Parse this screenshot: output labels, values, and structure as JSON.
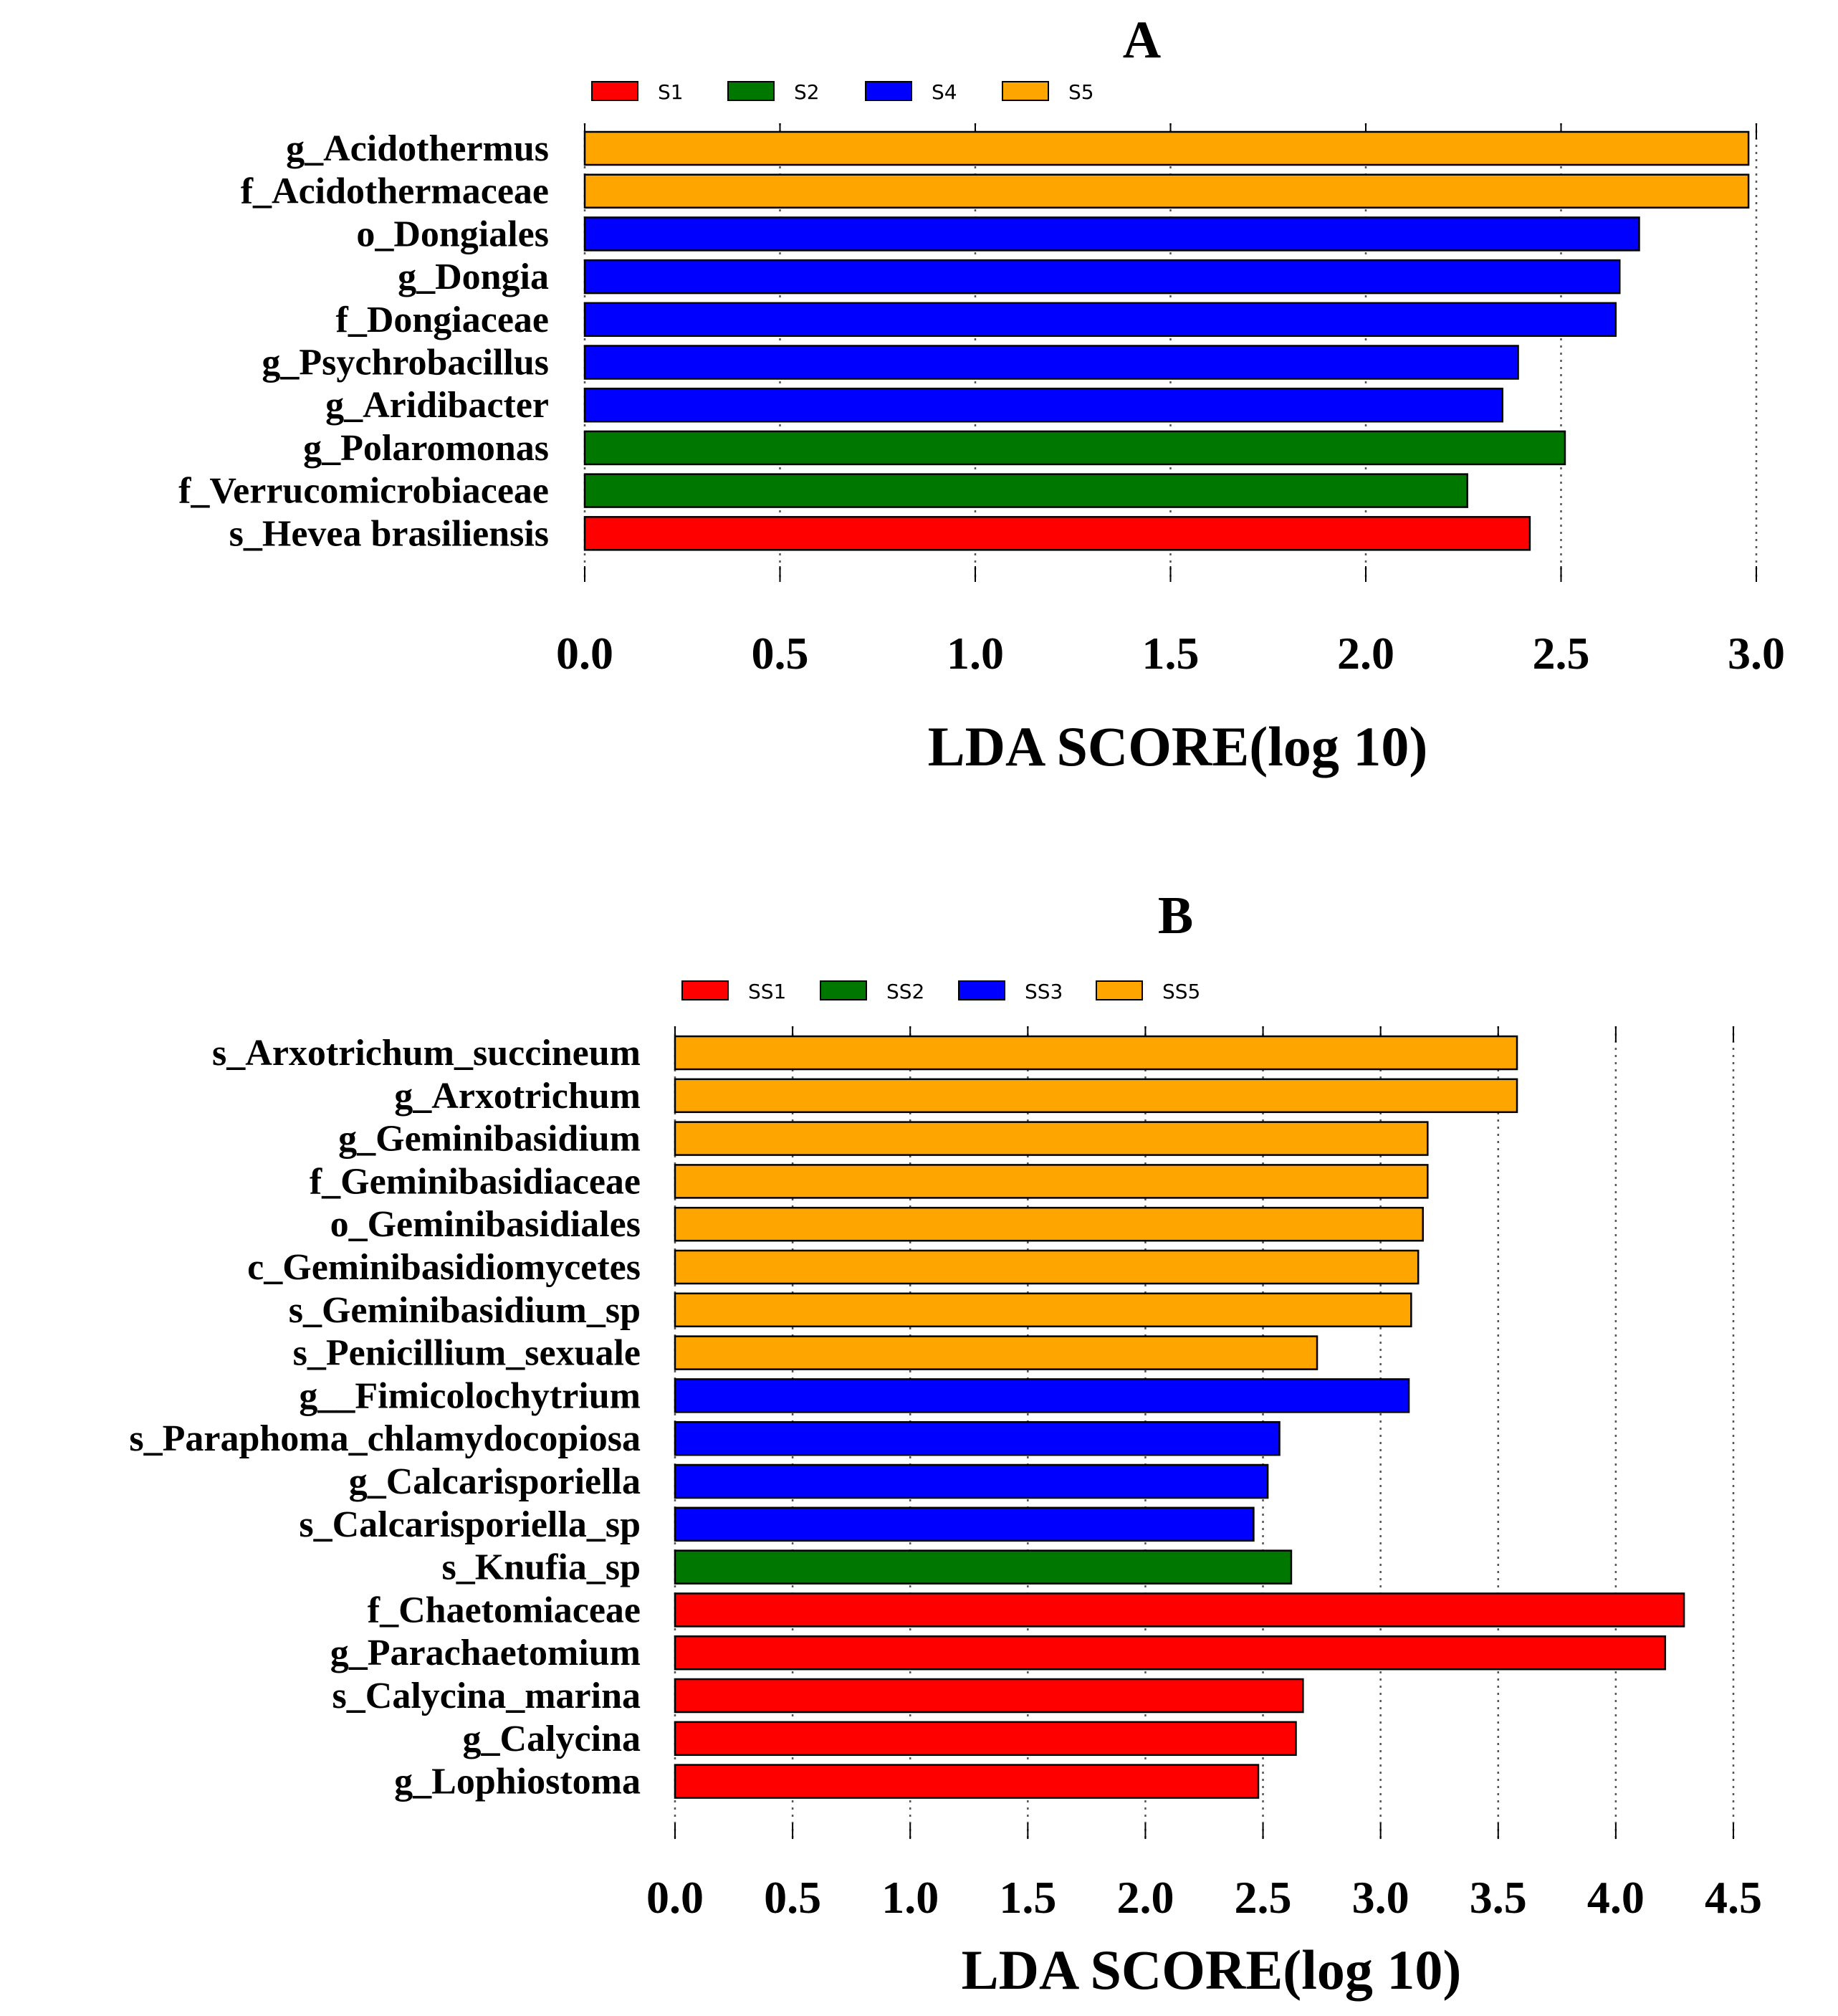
{
  "colors": {
    "red": "#ff0000",
    "green": "#007800",
    "blue": "#0000ff",
    "orange": "#ffa500"
  },
  "chart_data": [
    {
      "type": "bar",
      "orientation": "horizontal",
      "title": "A",
      "xlabel": "LDA SCORE(log 10)",
      "xlim": [
        0,
        3.0
      ],
      "xticks": [
        "0.0",
        "0.5",
        "1.0",
        "1.5",
        "2.0",
        "2.5",
        "3.0"
      ],
      "legend": [
        {
          "label": "S1",
          "color": "#ff0000"
        },
        {
          "label": "S2",
          "color": "#007800"
        },
        {
          "label": "S4",
          "color": "#0000ff"
        },
        {
          "label": "S5",
          "color": "#ffa500"
        }
      ],
      "bars": [
        {
          "label": "g_Acidothermus",
          "value": 2.98,
          "group": "S5"
        },
        {
          "label": "f_Acidothermaceae",
          "value": 2.98,
          "group": "S5"
        },
        {
          "label": "o_Dongiales",
          "value": 2.7,
          "group": "S4"
        },
        {
          "label": "g_Dongia",
          "value": 2.65,
          "group": "S4"
        },
        {
          "label": "f_Dongiaceae",
          "value": 2.64,
          "group": "S4"
        },
        {
          "label": "g_Psychrobacillus",
          "value": 2.39,
          "group": "S4"
        },
        {
          "label": "g_Aridibacter",
          "value": 2.35,
          "group": "S4"
        },
        {
          "label": "g_Polaromonas",
          "value": 2.51,
          "group": "S2"
        },
        {
          "label": "f_Verrucomicrobiaceae",
          "value": 2.26,
          "group": "S2"
        },
        {
          "label": "s_Hevea brasiliensis",
          "value": 2.42,
          "group": "S1"
        }
      ]
    },
    {
      "type": "bar",
      "orientation": "horizontal",
      "title": "B",
      "xlabel": "LDA SCORE(log 10)",
      "xlim": [
        0,
        4.5
      ],
      "xticks": [
        "0.0",
        "0.5",
        "1.0",
        "1.5",
        "2.0",
        "2.5",
        "3.0",
        "3.5",
        "4.0",
        "4.5"
      ],
      "legend": [
        {
          "label": "SS1",
          "color": "#ff0000"
        },
        {
          "label": "SS2",
          "color": "#007800"
        },
        {
          "label": "SS3",
          "color": "#0000ff"
        },
        {
          "label": "SS5",
          "color": "#ffa500"
        }
      ],
      "bars": [
        {
          "label": "s_Arxotrichum_succineum",
          "value": 3.58,
          "group": "SS5"
        },
        {
          "label": "g_Arxotrichum",
          "value": 3.58,
          "group": "SS5"
        },
        {
          "label": "g_Geminibasidium",
          "value": 3.2,
          "group": "SS5"
        },
        {
          "label": "f_Geminibasidiaceae",
          "value": 3.2,
          "group": "SS5"
        },
        {
          "label": "o_Geminibasidiales",
          "value": 3.18,
          "group": "SS5"
        },
        {
          "label": "c_Geminibasidiomycetes",
          "value": 3.16,
          "group": "SS5"
        },
        {
          "label": "s_Geminibasidium_sp",
          "value": 3.13,
          "group": "SS5"
        },
        {
          "label": "s_Penicillium_sexuale",
          "value": 2.73,
          "group": "SS5"
        },
        {
          "label": "g__Fimicolochytrium",
          "value": 3.12,
          "group": "SS3"
        },
        {
          "label": "s_Paraphoma_chlamydocopiosa",
          "value": 2.57,
          "group": "SS3"
        },
        {
          "label": "g_Calcarisporiella",
          "value": 2.52,
          "group": "SS3"
        },
        {
          "label": "s_Calcarisporiella_sp",
          "value": 2.46,
          "group": "SS3"
        },
        {
          "label": "s_Knufia_sp",
          "value": 2.62,
          "group": "SS2"
        },
        {
          "label": "f_Chaetomiaceae",
          "value": 4.29,
          "group": "SS1"
        },
        {
          "label": "g_Parachaetomium",
          "value": 4.21,
          "group": "SS1"
        },
        {
          "label": "s_Calycina_marina",
          "value": 2.67,
          "group": "SS1"
        },
        {
          "label": "g_Calycina",
          "value": 2.64,
          "group": "SS1"
        },
        {
          "label": "g_Lophiostoma",
          "value": 2.48,
          "group": "SS1"
        }
      ]
    }
  ]
}
